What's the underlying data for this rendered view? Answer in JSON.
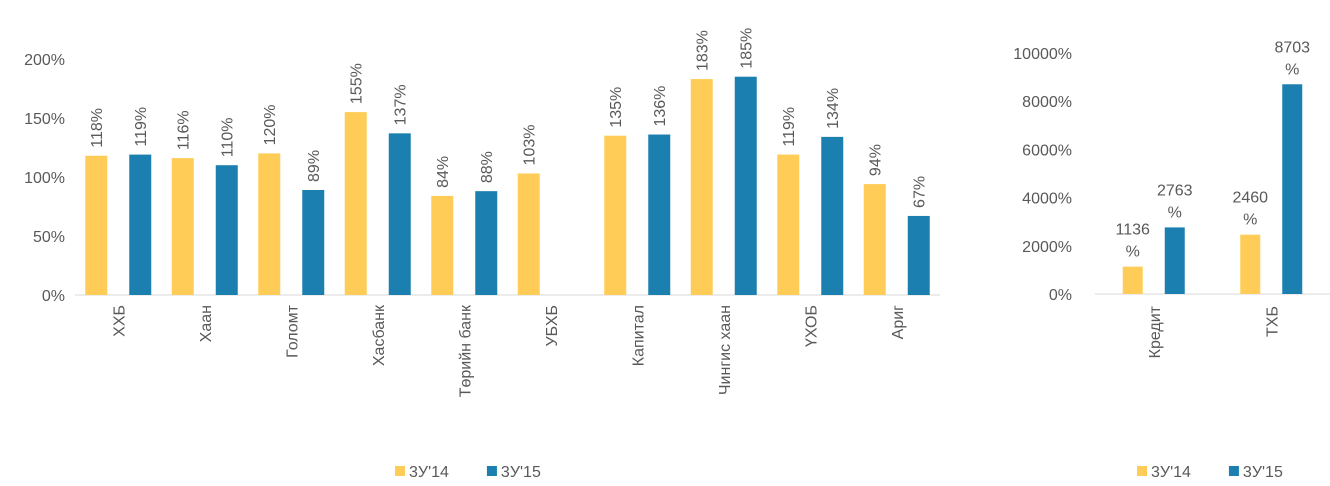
{
  "chart_data": [
    {
      "type": "bar",
      "categories": [
        "ХХБ",
        "Хаан",
        "Голомт",
        "Хасбанк",
        "Төрийн банк",
        "УБХБ",
        "Капитал",
        "Чингис хаан",
        "ҮХОБ",
        "Ариг"
      ],
      "series": [
        {
          "name": "3У'14",
          "color": "#ffcd57",
          "values": [
            118,
            116,
            120,
            155,
            84,
            103,
            135,
            183,
            119,
            94
          ],
          "value_labels": [
            "118%",
            "116%",
            "120%",
            "155%",
            "84%",
            "103%",
            "135%",
            "183%",
            "119%",
            "94%"
          ]
        },
        {
          "name": "3У'15",
          "color": "#1b80b0",
          "values": [
            119,
            110,
            89,
            137,
            88,
            null,
            136,
            185,
            134,
            67
          ],
          "value_labels": [
            "119%",
            "110%",
            "89%",
            "137%",
            "88%",
            null,
            "136%",
            "185%",
            "134%",
            "67%"
          ]
        }
      ],
      "ylim": [
        0,
        200
      ],
      "yticks": [
        {
          "value": 0,
          "label": "0%"
        },
        {
          "value": 50,
          "label": "50%"
        },
        {
          "value": 100,
          "label": "100%"
        },
        {
          "value": 150,
          "label": "150%"
        },
        {
          "value": 200,
          "label": "200%"
        }
      ],
      "legend": "bottom"
    },
    {
      "type": "bar",
      "categories": [
        "Кредит",
        "ТХБ"
      ],
      "series": [
        {
          "name": "3У'14",
          "color": "#ffcd57",
          "values": [
            1136,
            2460
          ],
          "value_labels": [
            "1136%",
            "2460%"
          ]
        },
        {
          "name": "3У'15",
          "color": "#1b80b0",
          "values": [
            2763,
            8703
          ],
          "value_labels": [
            "2763%",
            "8703%"
          ]
        }
      ],
      "ylim": [
        0,
        10000
      ],
      "yticks": [
        {
          "value": 0,
          "label": "0%"
        },
        {
          "value": 2000,
          "label": "2000%"
        },
        {
          "value": 4000,
          "label": "4000%"
        },
        {
          "value": 6000,
          "label": "6000%"
        },
        {
          "value": 8000,
          "label": "8000%"
        },
        {
          "value": 10000,
          "label": "10000%"
        }
      ],
      "legend": "bottom"
    }
  ]
}
